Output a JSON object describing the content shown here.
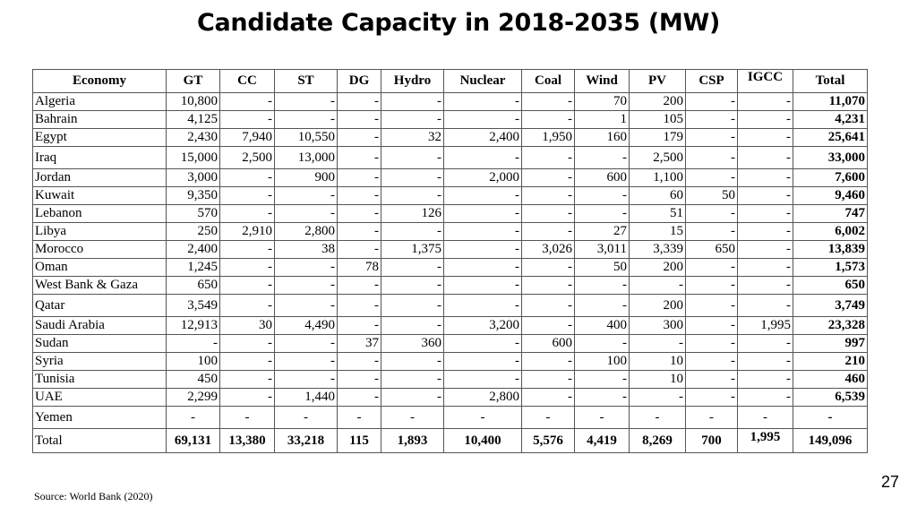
{
  "title": "Candidate Capacity in 2018-2035 (MW)",
  "columns": [
    "Economy",
    "GT",
    "CC",
    "ST",
    "DG",
    "Hydro",
    "Nuclear",
    "Coal",
    "Wind",
    "PV",
    "CSP",
    "IGCC",
    "Total"
  ],
  "rows": [
    [
      "Algeria",
      "10,800",
      "-",
      "-",
      "-",
      "-",
      "-",
      "-",
      "70",
      "200",
      "-",
      "-",
      "11,070"
    ],
    [
      "Bahrain",
      "4,125",
      "-",
      "-",
      "-",
      "-",
      "-",
      "-",
      "1",
      "105",
      "-",
      "-",
      "4,231"
    ],
    [
      "Egypt",
      "2,430",
      "7,940",
      "10,550",
      "-",
      "32",
      "2,400",
      "1,950",
      "160",
      "179",
      "-",
      "-",
      "25,641"
    ],
    [
      "Iraq",
      "15,000",
      "2,500",
      "13,000",
      "-",
      "-",
      "-",
      "-",
      "-",
      "2,500",
      "-",
      "-",
      "33,000"
    ],
    [
      "Jordan",
      "3,000",
      "-",
      "900",
      "-",
      "-",
      "2,000",
      "-",
      "600",
      "1,100",
      "-",
      "-",
      "7,600"
    ],
    [
      "Kuwait",
      "9,350",
      "-",
      "-",
      "-",
      "-",
      "-",
      "-",
      "-",
      "60",
      "50",
      "-",
      "9,460"
    ],
    [
      "Lebanon",
      "570",
      "-",
      "-",
      "-",
      "126",
      "-",
      "-",
      "-",
      "51",
      "-",
      "-",
      "747"
    ],
    [
      "Libya",
      "250",
      "2,910",
      "2,800",
      "-",
      "-",
      "-",
      "-",
      "27",
      "15",
      "-",
      "-",
      "6,002"
    ],
    [
      "Morocco",
      "2,400",
      "-",
      "38",
      "-",
      "1,375",
      "-",
      "3,026",
      "3,011",
      "3,339",
      "650",
      "-",
      "13,839"
    ],
    [
      "Oman",
      "1,245",
      "-",
      "-",
      "78",
      "-",
      "-",
      "-",
      "50",
      "200",
      "-",
      "-",
      "1,573"
    ],
    [
      "West Bank & Gaza",
      "650",
      "-",
      "-",
      "-",
      "-",
      "-",
      "-",
      "-",
      "-",
      "-",
      "-",
      "650"
    ],
    [
      "Qatar",
      "3,549",
      "-",
      "-",
      "-",
      "-",
      "-",
      "-",
      "-",
      "200",
      "-",
      "-",
      "3,749"
    ],
    [
      "Saudi Arabia",
      "12,913",
      "30",
      "4,490",
      "-",
      "-",
      "3,200",
      "-",
      "400",
      "300",
      "-",
      "1,995",
      "23,328"
    ],
    [
      "Sudan",
      "-",
      "-",
      "-",
      "37",
      "360",
      "-",
      "600",
      "-",
      "-",
      "-",
      "-",
      "997"
    ],
    [
      "Syria",
      "100",
      "-",
      "-",
      "-",
      "-",
      "-",
      "-",
      "100",
      "10",
      "-",
      "-",
      "210"
    ],
    [
      "Tunisia",
      "450",
      "-",
      "-",
      "-",
      "-",
      "-",
      "-",
      "-",
      "10",
      "-",
      "-",
      "460"
    ],
    [
      "UAE",
      "2,299",
      "-",
      "1,440",
      "-",
      "-",
      "2,800",
      "-",
      "-",
      "-",
      "-",
      "-",
      "6,539"
    ],
    [
      "Yemen",
      "-",
      "-",
      "-",
      "-",
      "-",
      "-",
      "-",
      "-",
      "-",
      "-",
      "-",
      "-"
    ]
  ],
  "total_row": [
    "Total",
    "69,131",
    "13,380",
    "33,218",
    "115",
    "1,893",
    "10,400",
    "5,576",
    "4,419",
    "8,269",
    "700",
    "1,995",
    "149,096"
  ],
  "source": "Source: World Bank (2020)",
  "page_number": "27"
}
